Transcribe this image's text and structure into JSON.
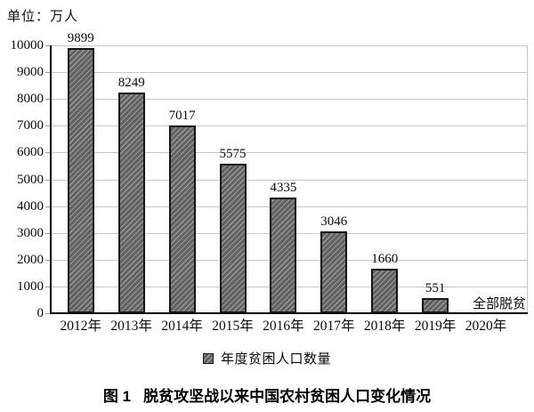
{
  "unit_label": "单位：万人",
  "legend": {
    "marker_icon": "hatched-square-swatch",
    "label": "年度贫困人口数量"
  },
  "caption": {
    "figure_label": "图 1",
    "text": "脱贫攻坚战以来中国农村贫困人口变化情况"
  },
  "colors": {
    "background": "#ffffff",
    "gridline": "#c6c6c6",
    "axis": "#000000",
    "bar_fill": "#666666",
    "bar_hatch": "#9a9a9a",
    "bar_border": "#151515",
    "text": "#0a0a0a"
  },
  "chart_data": {
    "type": "bar",
    "title": "脱贫攻坚战以来中国农村贫困人口变化情况",
    "unit": "万人",
    "categories": [
      "2012年",
      "2013年",
      "2014年",
      "2015年",
      "2016年",
      "2017年",
      "2018年",
      "2019年",
      "2020年"
    ],
    "values": [
      9899,
      8249,
      7017,
      5575,
      4335,
      3046,
      1660,
      551,
      null
    ],
    "annotations": [
      {
        "category": "2020年",
        "text": "全部脱贫"
      }
    ],
    "xlabel": "",
    "ylabel": "万人",
    "ylim": [
      0,
      10000
    ],
    "yticks": [
      0,
      1000,
      2000,
      3000,
      4000,
      5000,
      6000,
      7000,
      8000,
      9000,
      10000
    ],
    "grid": "horizontal",
    "hatch": "/",
    "legend_entries": [
      "年度贫困人口数量"
    ],
    "legend_position": "bottom-center",
    "data_labels": true
  }
}
